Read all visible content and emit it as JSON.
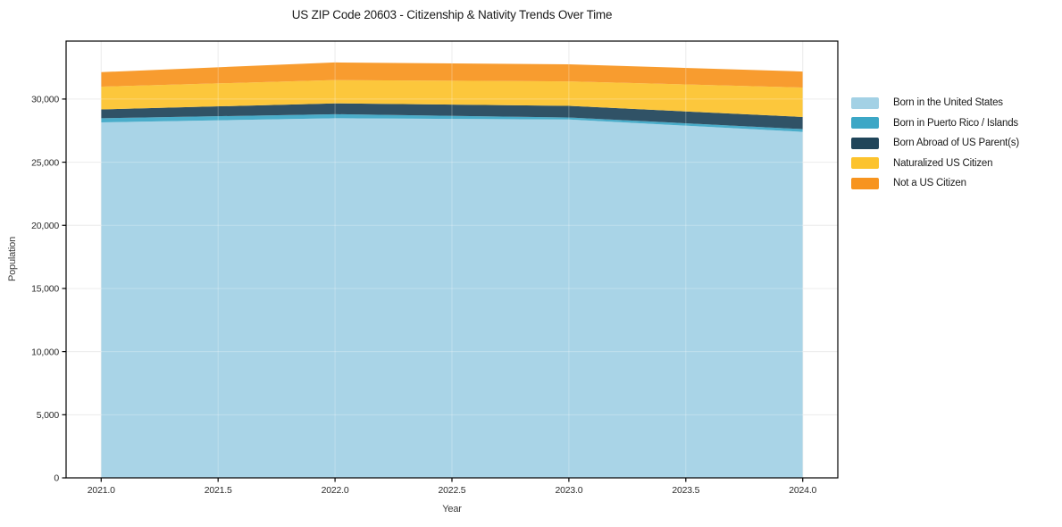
{
  "title": "US ZIP Code 20603 - Citizenship & Nativity Trends Over Time",
  "axes": {
    "x_label": "Year",
    "y_label": "Population"
  },
  "chart_data": {
    "type": "area",
    "stacked": true,
    "title": "US ZIP Code 20603 - Citizenship & Nativity Trends Over Time",
    "xlabel": "Year",
    "ylabel": "Population",
    "x": [
      2021,
      2022,
      2023,
      2024
    ],
    "x_tick_values": [
      2021.0,
      2021.5,
      2022.0,
      2022.5,
      2023.0,
      2023.5,
      2024.0
    ],
    "x_tick_labels": [
      "2021.0",
      "2021.5",
      "2022.0",
      "2022.5",
      "2023.0",
      "2023.5",
      "2024.0"
    ],
    "y_tick_values": [
      0,
      5000,
      10000,
      15000,
      20000,
      25000,
      30000
    ],
    "y_tick_labels": [
      "0",
      "5,000",
      "10,000",
      "15,000",
      "20,000",
      "25,000",
      "30,000"
    ],
    "xlim": [
      2020.85,
      2024.15
    ],
    "ylim": [
      0,
      34590
    ],
    "grid": true,
    "legend_position": "right-outside",
    "series": [
      {
        "name": "Born in the United States",
        "color": "#a3d1e5",
        "values": [
          28150,
          28480,
          28380,
          27400
        ]
      },
      {
        "name": "Born in Puerto Rico / Islands",
        "color": "#3ca7c6",
        "values": [
          330,
          320,
          160,
          220
        ]
      },
      {
        "name": "Born Abroad of US Parent(s)",
        "color": "#20455a",
        "values": [
          700,
          860,
          920,
          960
        ]
      },
      {
        "name": "Naturalized US Citizen",
        "color": "#fcc32d",
        "values": [
          1800,
          1840,
          1940,
          2330
        ]
      },
      {
        "name": "Not a US Citizen",
        "color": "#f7941f",
        "values": [
          1150,
          1400,
          1350,
          1270
        ]
      }
    ],
    "totals": [
      32130,
      32900,
      32750,
      32180
    ]
  }
}
